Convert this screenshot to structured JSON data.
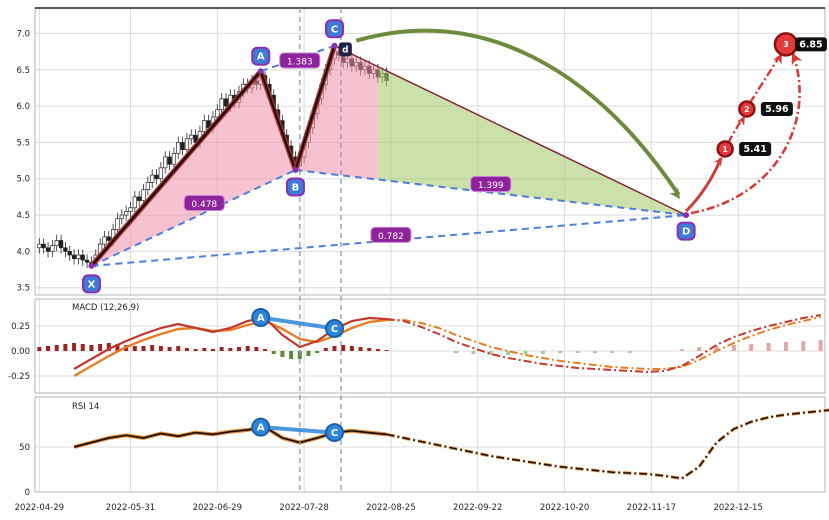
{
  "colors": {
    "grid": "#dcdcdc",
    "spine": "#b5b5b5",
    "axis_text": "#262626",
    "candle_up": "#ffffff",
    "candle_down": "#1f1f1f",
    "candle_stroke": "#2b2b2b",
    "pattern_line": "#111111",
    "pattern_line_glow": "#b03030",
    "cd_line": "#7a2430",
    "dashed_line": "#4d7fd9",
    "vline": "#8696b8",
    "fill_bull": "#ef8fa8",
    "fill_proj": "#a9cc72",
    "badge_fill": "#3d7bd6",
    "badge_stroke": "#8b2fb0",
    "ratio_fill": "#8e239c",
    "ratio_stroke": "#c583d6",
    "target_circle": "#e23b3b",
    "target_circle_stroke": "#8f1010",
    "price_box": "#101010",
    "green_arrow": "#6e8b3d",
    "red_path": "#d33c3c",
    "macd_line": "#c0392b",
    "signal_line": "#e67e22",
    "hist_pos": "#992626",
    "hist_neg": "#5a8a3c",
    "hist_pos_proj": "#e3a6a6",
    "hist_neg_proj": "#aac89a",
    "rsi_line": "#111111",
    "rsi_glow": "#e67e22",
    "marker_fill": "#2e86d9",
    "marker_stroke": "#1b5fa8",
    "marker_link": "#2e86d9",
    "d_badge_fill": "#232347"
  },
  "chart_data": [
    {
      "panel": "price",
      "type": "candlestick",
      "xlim": [
        -1,
        181
      ],
      "ylim": [
        3.4,
        7.35
      ],
      "y_ticks": [
        {
          "v": 7.0,
          "label": "7.0"
        },
        {
          "v": 6.5,
          "label": "6.5"
        },
        {
          "v": 6.0,
          "label": "6.0"
        },
        {
          "v": 5.5,
          "label": "5.5"
        },
        {
          "v": 5.0,
          "label": "5.0"
        },
        {
          "v": 4.5,
          "label": "4.5"
        },
        {
          "v": 4.0,
          "label": "4.0"
        },
        {
          "v": 3.5,
          "label": "3.5"
        }
      ],
      "x_ticks": [
        {
          "t": 0,
          "label": "2022-04-29"
        },
        {
          "t": 21,
          "label": "2022-05-31"
        },
        {
          "t": 41,
          "label": "2022-06-29"
        },
        {
          "t": 61,
          "label": "2022-07-28"
        },
        {
          "t": 81,
          "label": "2022-08-25"
        },
        {
          "t": 101,
          "label": "2022-09-22"
        },
        {
          "t": 121,
          "label": "2022-10-20"
        },
        {
          "t": 141,
          "label": "2022-11-17"
        },
        {
          "t": 161,
          "label": "2022-12-15"
        }
      ],
      "candles_t0": 0,
      "ohlc": [
        [
          4.05,
          4.18,
          3.97,
          4.1
        ],
        [
          4.1,
          4.18,
          3.97,
          4.05
        ],
        [
          4.05,
          4.13,
          3.92,
          4.0
        ],
        [
          4.0,
          4.16,
          3.92,
          4.08
        ],
        [
          4.08,
          4.23,
          4.0,
          4.15
        ],
        [
          4.15,
          4.23,
          3.97,
          4.05
        ],
        [
          4.05,
          4.13,
          3.92,
          4.0
        ],
        [
          4.0,
          4.08,
          3.87,
          3.95
        ],
        [
          3.95,
          4.03,
          3.82,
          3.9
        ],
        [
          3.9,
          4.03,
          3.82,
          3.95
        ],
        [
          3.95,
          4.03,
          3.8,
          3.88
        ],
        [
          3.88,
          3.96,
          3.77,
          3.85
        ],
        [
          3.85,
          3.93,
          3.78,
          3.82
        ],
        [
          3.82,
          4.03,
          3.78,
          3.95
        ],
        [
          3.95,
          4.18,
          3.9,
          4.1
        ],
        [
          4.1,
          4.28,
          4.02,
          4.2
        ],
        [
          4.2,
          4.28,
          4.07,
          4.15
        ],
        [
          4.15,
          4.38,
          4.07,
          4.3
        ],
        [
          4.3,
          4.53,
          4.22,
          4.45
        ],
        [
          4.45,
          4.58,
          4.37,
          4.5
        ],
        [
          4.5,
          4.63,
          4.42,
          4.55
        ],
        [
          4.55,
          4.68,
          4.47,
          4.6
        ],
        [
          4.6,
          4.83,
          4.52,
          4.75
        ],
        [
          4.75,
          4.83,
          4.62,
          4.7
        ],
        [
          4.7,
          4.93,
          4.62,
          4.85
        ],
        [
          4.85,
          5.03,
          4.77,
          4.95
        ],
        [
          4.95,
          5.13,
          4.87,
          5.05
        ],
        [
          5.05,
          5.13,
          4.92,
          5.0
        ],
        [
          5.0,
          5.23,
          4.92,
          5.15
        ],
        [
          5.15,
          5.38,
          5.07,
          5.3
        ],
        [
          5.3,
          5.38,
          5.12,
          5.2
        ],
        [
          5.2,
          5.43,
          5.12,
          5.35
        ],
        [
          5.35,
          5.58,
          5.27,
          5.5
        ],
        [
          5.5,
          5.58,
          5.32,
          5.4
        ],
        [
          5.4,
          5.63,
          5.32,
          5.55
        ],
        [
          5.55,
          5.68,
          5.47,
          5.6
        ],
        [
          5.6,
          5.68,
          5.42,
          5.5
        ],
        [
          5.5,
          5.73,
          5.42,
          5.65
        ],
        [
          5.65,
          5.88,
          5.57,
          5.8
        ],
        [
          5.8,
          5.88,
          5.62,
          5.7
        ],
        [
          5.7,
          5.93,
          5.62,
          5.85
        ],
        [
          5.85,
          6.03,
          5.77,
          5.95
        ],
        [
          5.95,
          6.18,
          5.87,
          6.1
        ],
        [
          6.1,
          6.18,
          5.92,
          6.0
        ],
        [
          6.0,
          6.23,
          5.92,
          6.15
        ],
        [
          6.15,
          6.23,
          5.97,
          6.05
        ],
        [
          6.05,
          6.28,
          5.97,
          6.2
        ],
        [
          6.2,
          6.38,
          6.12,
          6.3
        ],
        [
          6.3,
          6.38,
          6.17,
          6.25
        ],
        [
          6.25,
          6.43,
          6.17,
          6.35
        ],
        [
          6.35,
          6.43,
          6.22,
          6.3
        ],
        [
          6.3,
          6.48,
          6.22,
          6.42
        ],
        [
          6.42,
          6.48,
          6.22,
          6.3
        ],
        [
          6.3,
          6.38,
          6.07,
          6.15
        ],
        [
          6.15,
          6.23,
          5.87,
          5.95
        ],
        [
          5.95,
          6.03,
          5.72,
          5.8
        ],
        [
          5.8,
          5.88,
          5.52,
          5.6
        ],
        [
          5.6,
          5.68,
          5.37,
          5.45
        ],
        [
          5.45,
          5.53,
          5.22,
          5.3
        ],
        [
          5.3,
          5.38,
          5.12,
          5.18
        ],
        [
          5.18,
          5.38,
          5.1,
          5.3
        ],
        [
          5.3,
          5.58,
          5.22,
          5.5
        ],
        [
          5.5,
          5.78,
          5.42,
          5.7
        ],
        [
          5.7,
          5.98,
          5.62,
          5.9
        ],
        [
          5.9,
          6.18,
          5.82,
          6.1
        ],
        [
          6.1,
          6.38,
          6.02,
          6.3
        ],
        [
          6.3,
          6.58,
          6.22,
          6.5
        ],
        [
          6.5,
          6.73,
          6.42,
          6.65
        ],
        [
          6.65,
          6.83,
          6.57,
          6.75
        ],
        [
          6.75,
          6.83,
          6.62,
          6.7
        ],
        [
          6.7,
          6.78,
          6.52,
          6.6
        ],
        [
          6.6,
          6.73,
          6.52,
          6.65
        ],
        [
          6.65,
          6.73,
          6.47,
          6.55
        ],
        [
          6.55,
          6.68,
          6.47,
          6.6
        ],
        [
          6.6,
          6.68,
          6.42,
          6.5
        ],
        [
          6.5,
          6.63,
          6.42,
          6.55
        ],
        [
          6.55,
          6.63,
          6.37,
          6.45
        ],
        [
          6.45,
          6.58,
          6.37,
          6.5
        ],
        [
          6.5,
          6.58,
          6.32,
          6.4
        ],
        [
          6.4,
          6.53,
          6.32,
          6.45
        ],
        [
          6.45,
          6.53,
          6.27,
          6.35
        ]
      ],
      "pattern": {
        "points": {
          "X": {
            "t": 12,
            "p": 3.8,
            "dy": 18
          },
          "A": {
            "t": 51,
            "p": 6.48,
            "dy": -15
          },
          "B": {
            "t": 59,
            "p": 5.12,
            "dy": 17
          },
          "C": {
            "t": 68,
            "p": 6.83,
            "dy": -17
          },
          "D": {
            "t": 149,
            "p": 4.5,
            "dy": 16
          }
        },
        "legs_solid": [
          {
            "a": "X",
            "b": "A"
          },
          {
            "a": "A",
            "b": "B"
          },
          {
            "a": "B",
            "b": "C"
          }
        ],
        "legs_dashed": [
          {
            "a": "X",
            "b": "B",
            "ratio": "0.478",
            "lt": 38,
            "lp": 4.66
          },
          {
            "a": "A",
            "b": "C",
            "ratio": "1.383",
            "lt": 60,
            "lp": 6.62
          },
          {
            "a": "B",
            "b": "D",
            "ratio": "1.399",
            "lt": 104,
            "lp": 4.92
          },
          {
            "a": "X",
            "b": "D",
            "ratio": "0.782",
            "lt": 81,
            "lp": 4.22
          }
        ],
        "fills": [
          {
            "name": "xab",
            "color_key": "fill_bull",
            "opacity": 0.55,
            "pts": [
              [
                12,
                3.8
              ],
              [
                51,
                6.48
              ],
              [
                59,
                5.12
              ]
            ]
          },
          {
            "name": "bc-now",
            "color_key": "fill_bull",
            "opacity": 0.55,
            "pts": [
              [
                59,
                5.12
              ],
              [
                68,
                6.83
              ],
              [
                78,
                6.54
              ],
              [
                78,
                4.99
              ]
            ]
          },
          {
            "name": "cd-projection",
            "color_key": "fill_proj",
            "opacity": 0.6,
            "pts": [
              [
                78,
                6.54
              ],
              [
                149,
                4.5
              ],
              [
                78,
                4.99
              ]
            ]
          }
        ]
      },
      "targets": [
        {
          "t": 158,
          "p": 5.41,
          "label": "5.41",
          "n": "1",
          "r": 7.5,
          "dx": 30
        },
        {
          "t": 163,
          "p": 5.96,
          "label": "5.96",
          "n": "2",
          "r": 7.5,
          "dx": 30
        },
        {
          "t": 172,
          "p": 6.85,
          "label": "6.85",
          "n": "3",
          "r": 11,
          "dx": 25
        }
      ],
      "annotations": {
        "d_badge": {
          "t": 70.5,
          "p": 6.78,
          "text": "d"
        }
      },
      "vlines": [
        60,
        69.5
      ]
    },
    {
      "panel": "macd",
      "type": "line+histogram",
      "label": "MACD (12,26,9)",
      "ylim": [
        -0.42,
        0.52
      ],
      "y_ticks": [
        {
          "v": 0.25,
          "label": "0.25"
        },
        {
          "v": 0,
          "label": "0.00"
        },
        {
          "v": -0.25,
          "label": "-0.25"
        }
      ],
      "solid_until_t": 80,
      "series": {
        "macd": {
          "t0": 8,
          "step": 4,
          "values": [
            -0.18,
            -0.08,
            0.02,
            0.1,
            0.17,
            0.23,
            0.27,
            0.23,
            0.19,
            0.23,
            0.3,
            0.33,
            0.16,
            0.04,
            0.1,
            0.22,
            0.3,
            0.33,
            0.32,
            0.3,
            0.24,
            0.17,
            0.09,
            0.03,
            -0.03,
            -0.07,
            -0.1,
            -0.13,
            -0.15,
            -0.17,
            -0.18,
            -0.19,
            -0.2,
            -0.21,
            -0.2,
            -0.15,
            -0.05,
            0.06,
            0.14,
            0.2,
            0.25,
            0.29,
            0.33,
            0.36
          ]
        },
        "signal": {
          "t0": 8,
          "step": 4,
          "values": [
            -0.25,
            -0.15,
            -0.05,
            0.04,
            0.11,
            0.17,
            0.22,
            0.23,
            0.2,
            0.21,
            0.26,
            0.3,
            0.22,
            0.12,
            0.09,
            0.15,
            0.23,
            0.29,
            0.31,
            0.31,
            0.28,
            0.23,
            0.16,
            0.1,
            0.04,
            0.0,
            -0.04,
            -0.07,
            -0.1,
            -0.12,
            -0.14,
            -0.16,
            -0.17,
            -0.18,
            -0.18,
            -0.16,
            -0.09,
            0.0,
            0.08,
            0.15,
            0.21,
            0.26,
            0.3,
            0.34
          ]
        }
      },
      "hist": [
        [
          0,
          0.04
        ],
        [
          2,
          0.05
        ],
        [
          4,
          0.06
        ],
        [
          6,
          0.07
        ],
        [
          8,
          0.08
        ],
        [
          10,
          0.07
        ],
        [
          12,
          0.06
        ],
        [
          14,
          0.07
        ],
        [
          16,
          0.08
        ],
        [
          18,
          0.07
        ],
        [
          20,
          0.06
        ],
        [
          22,
          0.05
        ],
        [
          24,
          0.05
        ],
        [
          26,
          0.06
        ],
        [
          28,
          0.05
        ],
        [
          30,
          0.04
        ],
        [
          32,
          0.05
        ],
        [
          34,
          0.03
        ],
        [
          36,
          0.02
        ],
        [
          38,
          0.03
        ],
        [
          40,
          0.02
        ],
        [
          42,
          0.04
        ],
        [
          44,
          0.03
        ],
        [
          46,
          0.04
        ],
        [
          48,
          0.05
        ],
        [
          50,
          0.04
        ],
        [
          52,
          0.02
        ],
        [
          54,
          -0.03
        ],
        [
          56,
          -0.06
        ],
        [
          58,
          -0.08
        ],
        [
          60,
          -0.08
        ],
        [
          62,
          -0.05
        ],
        [
          64,
          -0.02
        ],
        [
          66,
          0.03
        ],
        [
          68,
          0.05
        ],
        [
          70,
          0.06
        ],
        [
          72,
          0.05
        ],
        [
          74,
          0.04
        ],
        [
          76,
          0.03
        ],
        [
          78,
          0.02
        ],
        [
          80,
          0.01
        ],
        [
          96,
          -0.02
        ],
        [
          100,
          -0.03
        ],
        [
          104,
          -0.04
        ],
        [
          108,
          -0.04
        ],
        [
          112,
          -0.03
        ],
        [
          116,
          -0.03
        ],
        [
          120,
          -0.02
        ],
        [
          124,
          -0.02
        ],
        [
          128,
          -0.02
        ],
        [
          132,
          -0.02
        ],
        [
          136,
          -0.02
        ],
        [
          148,
          0.02
        ],
        [
          152,
          0.04
        ],
        [
          156,
          0.05
        ],
        [
          160,
          0.06
        ],
        [
          164,
          0.07
        ],
        [
          168,
          0.08
        ],
        [
          172,
          0.09
        ],
        [
          176,
          0.1
        ],
        [
          180,
          0.11
        ]
      ],
      "markers": [
        {
          "label": "A",
          "t": 51,
          "v": 0.335
        },
        {
          "label": "C",
          "t": 68,
          "v": 0.225
        }
      ]
    },
    {
      "panel": "rsi",
      "type": "line",
      "label": "RSI 14",
      "ylim": [
        0,
        105.5
      ],
      "y_ticks": [
        {
          "v": 50,
          "label": "50"
        },
        {
          "v": 0,
          "label": "0"
        }
      ],
      "solid_until_t": 80,
      "series": {
        "rsi": {
          "t0": 8,
          "step": 4,
          "values": [
            50,
            55,
            60,
            63,
            60,
            65,
            62,
            66,
            64,
            67,
            69,
            72,
            60,
            55,
            60,
            66,
            68,
            66,
            64,
            60,
            56,
            52,
            48,
            44,
            40,
            37,
            34,
            31,
            28,
            26,
            24,
            22,
            21,
            20,
            18,
            15,
            28,
            55,
            70,
            78,
            83,
            86,
            88,
            90,
            92
          ]
        }
      },
      "markers": [
        {
          "label": "A",
          "t": 51,
          "v": 72
        },
        {
          "label": "C",
          "t": 68,
          "v": 66
        }
      ]
    }
  ]
}
